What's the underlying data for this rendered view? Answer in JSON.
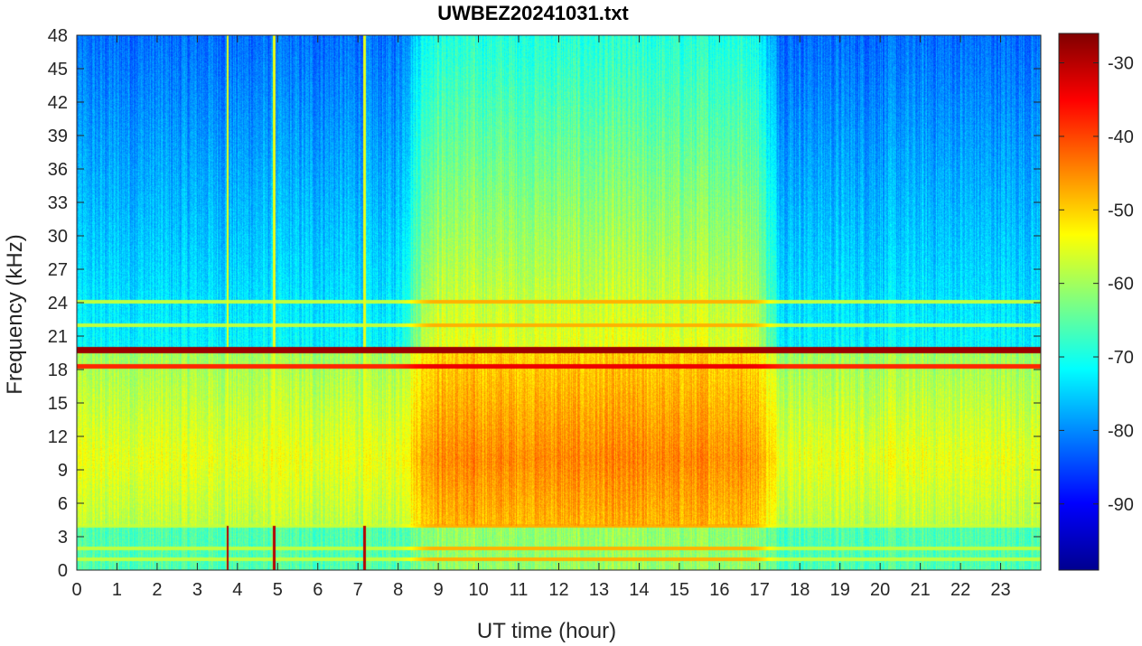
{
  "chart_data": {
    "type": "heatmap",
    "title": "UWBEZ20241031.txt",
    "xlabel": "UT time (hour)",
    "ylabel": "Frequency (kHz)",
    "xlim": [
      0,
      24
    ],
    "ylim": [
      0,
      48
    ],
    "x_ticks": [
      0,
      1,
      2,
      3,
      4,
      5,
      6,
      7,
      8,
      9,
      10,
      11,
      12,
      13,
      14,
      15,
      16,
      17,
      18,
      19,
      20,
      21,
      22,
      23
    ],
    "y_ticks": [
      0,
      3,
      6,
      9,
      12,
      15,
      18,
      21,
      24,
      27,
      30,
      33,
      36,
      39,
      42,
      45,
      48
    ],
    "colorbar": {
      "colormap": "jet",
      "range": [
        -99,
        -26
      ],
      "ticks": [
        -30,
        -40,
        -50,
        -60,
        -70,
        -80,
        -90
      ]
    },
    "data_description_values": {
      "strong_carriers_kHz": [
        19.8,
        18.3
      ],
      "weak_lines_kHz": [
        24.1,
        22.0,
        4.0,
        2.0,
        1.0
      ],
      "vertical_spikes_hour": [
        3.75,
        4.9,
        7.15
      ],
      "daytime_span_hour": [
        8.5,
        17.3
      ],
      "level_range_dB": [
        -99,
        -26
      ]
    }
  }
}
